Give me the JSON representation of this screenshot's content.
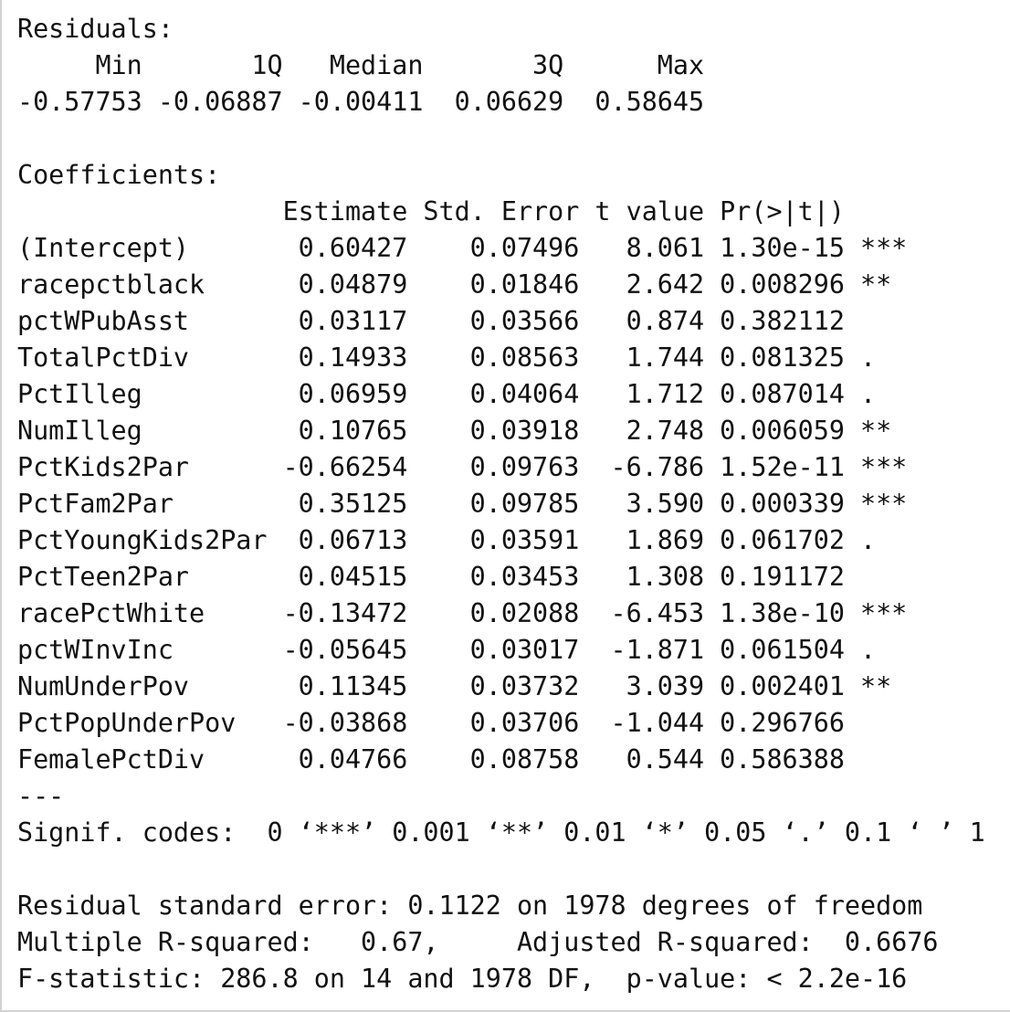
{
  "output": {
    "lines": [
      "Residuals:",
      "     Min       1Q   Median       3Q      Max ",
      "-0.57753 -0.06887 -0.00411  0.06629  0.58645 ",
      "",
      "Coefficients:",
      "                 Estimate Std. Error t value Pr(>|t|)    ",
      "(Intercept)       0.60427    0.07496   8.061 1.30e-15 ***",
      "racepctblack      0.04879    0.01846   2.642 0.008296 ** ",
      "pctWPubAsst       0.03117    0.03566   0.874 0.382112    ",
      "TotalPctDiv       0.14933    0.08563   1.744 0.081325 .  ",
      "PctIlleg          0.06959    0.04064   1.712 0.087014 .  ",
      "NumIlleg          0.10765    0.03918   2.748 0.006059 ** ",
      "PctKids2Par      -0.66254    0.09763  -6.786 1.52e-11 ***",
      "PctFam2Par        0.35125    0.09785   3.590 0.000339 ***",
      "PctYoungKids2Par  0.06713    0.03591   1.869 0.061702 .  ",
      "PctTeen2Par       0.04515    0.03453   1.308 0.191172    ",
      "racePctWhite     -0.13472    0.02088  -6.453 1.38e-10 ***",
      "pctWInvInc       -0.05645    0.03017  -1.871 0.061504 .  ",
      "NumUnderPov       0.11345    0.03732   3.039 0.002401 ** ",
      "PctPopUnderPov   -0.03868    0.03706  -1.044 0.296766    ",
      "FemalePctDiv      0.04766    0.08758   0.544 0.586388    ",
      "---",
      "Signif. codes:  0 ‘***’ 0.001 ‘**’ 0.01 ‘*’ 0.05 ‘.’ 0.1 ‘ ’ 1",
      "",
      "Residual standard error: 0.1122 on 1978 degrees of freedom",
      "Multiple R-squared:   0.67,\tAdjusted R-squared:  0.6676 ",
      "F-statistic: 286.8 on 14 and 1978 DF,  p-value: < 2.2e-16"
    ]
  }
}
